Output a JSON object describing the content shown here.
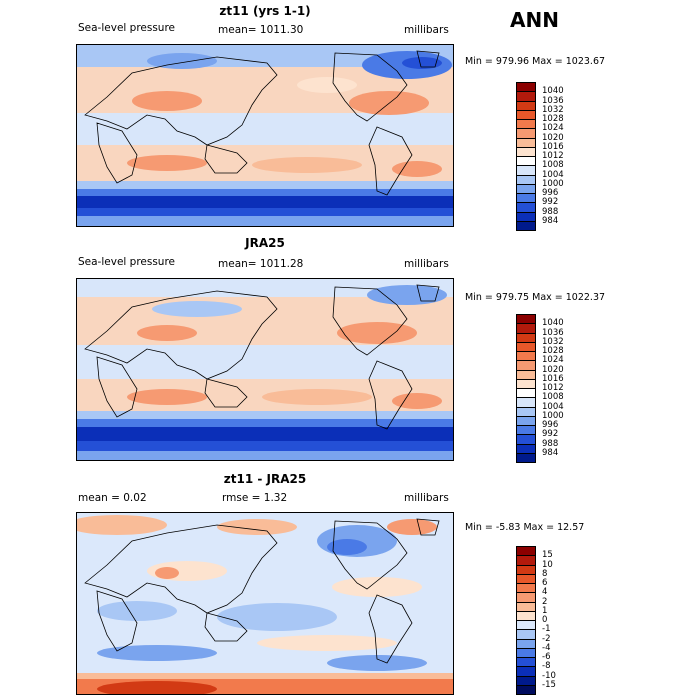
{
  "season": "ANN",
  "panels": [
    {
      "title": "zt11 (yrs 1-1)",
      "left_label": "Sea-level pressure",
      "center_label": "mean= 1011.30",
      "right_label": "millibars",
      "minmax": "Min = 979.96 Max = 1023.67",
      "kind": "field"
    },
    {
      "title": "JRA25",
      "left_label": "Sea-level pressure",
      "center_label": "mean= 1011.28",
      "right_label": "millibars",
      "minmax": "Min = 979.75 Max = 1022.37",
      "kind": "field"
    },
    {
      "title": "zt11 - JRA25",
      "left_label": "mean =    0.02",
      "center_label": "rmse =    1.32",
      "right_label": "millibars",
      "minmax": "Min =  -5.83 Max =  12.57",
      "kind": "diff"
    }
  ],
  "colorbars": {
    "field": {
      "levels": [
        "1040",
        "1036",
        "1032",
        "1028",
        "1024",
        "1020",
        "1016",
        "1012",
        "1008",
        "1004",
        "1000",
        "996",
        "992",
        "988",
        "984"
      ],
      "colors": [
        "#8b0000",
        "#b21a0c",
        "#d23a14",
        "#e8582a",
        "#f27a4c",
        "#f69a72",
        "#f9bc98",
        "#fde3cf",
        "#ffffff",
        "#d8e6fa",
        "#a9c7f5",
        "#7aa4ee",
        "#4a7ae6",
        "#2450d6",
        "#0b2fb8",
        "#001a8c"
      ]
    },
    "diff": {
      "levels": [
        "15",
        "10",
        "8",
        "6",
        "4",
        "2",
        "1",
        "0",
        "-1",
        "-2",
        "-4",
        "-6",
        "-8",
        "-10",
        "-15"
      ],
      "colors": [
        "#8b0000",
        "#b21a0c",
        "#d23a14",
        "#e8582a",
        "#f27a4c",
        "#f69a72",
        "#f9bc98",
        "#fde3cf",
        "#dbe8fb",
        "#a9c7f5",
        "#7aa4ee",
        "#4a7ae6",
        "#2450d6",
        "#0b2fb8",
        "#001a8c",
        "#000c5e"
      ]
    }
  }
}
